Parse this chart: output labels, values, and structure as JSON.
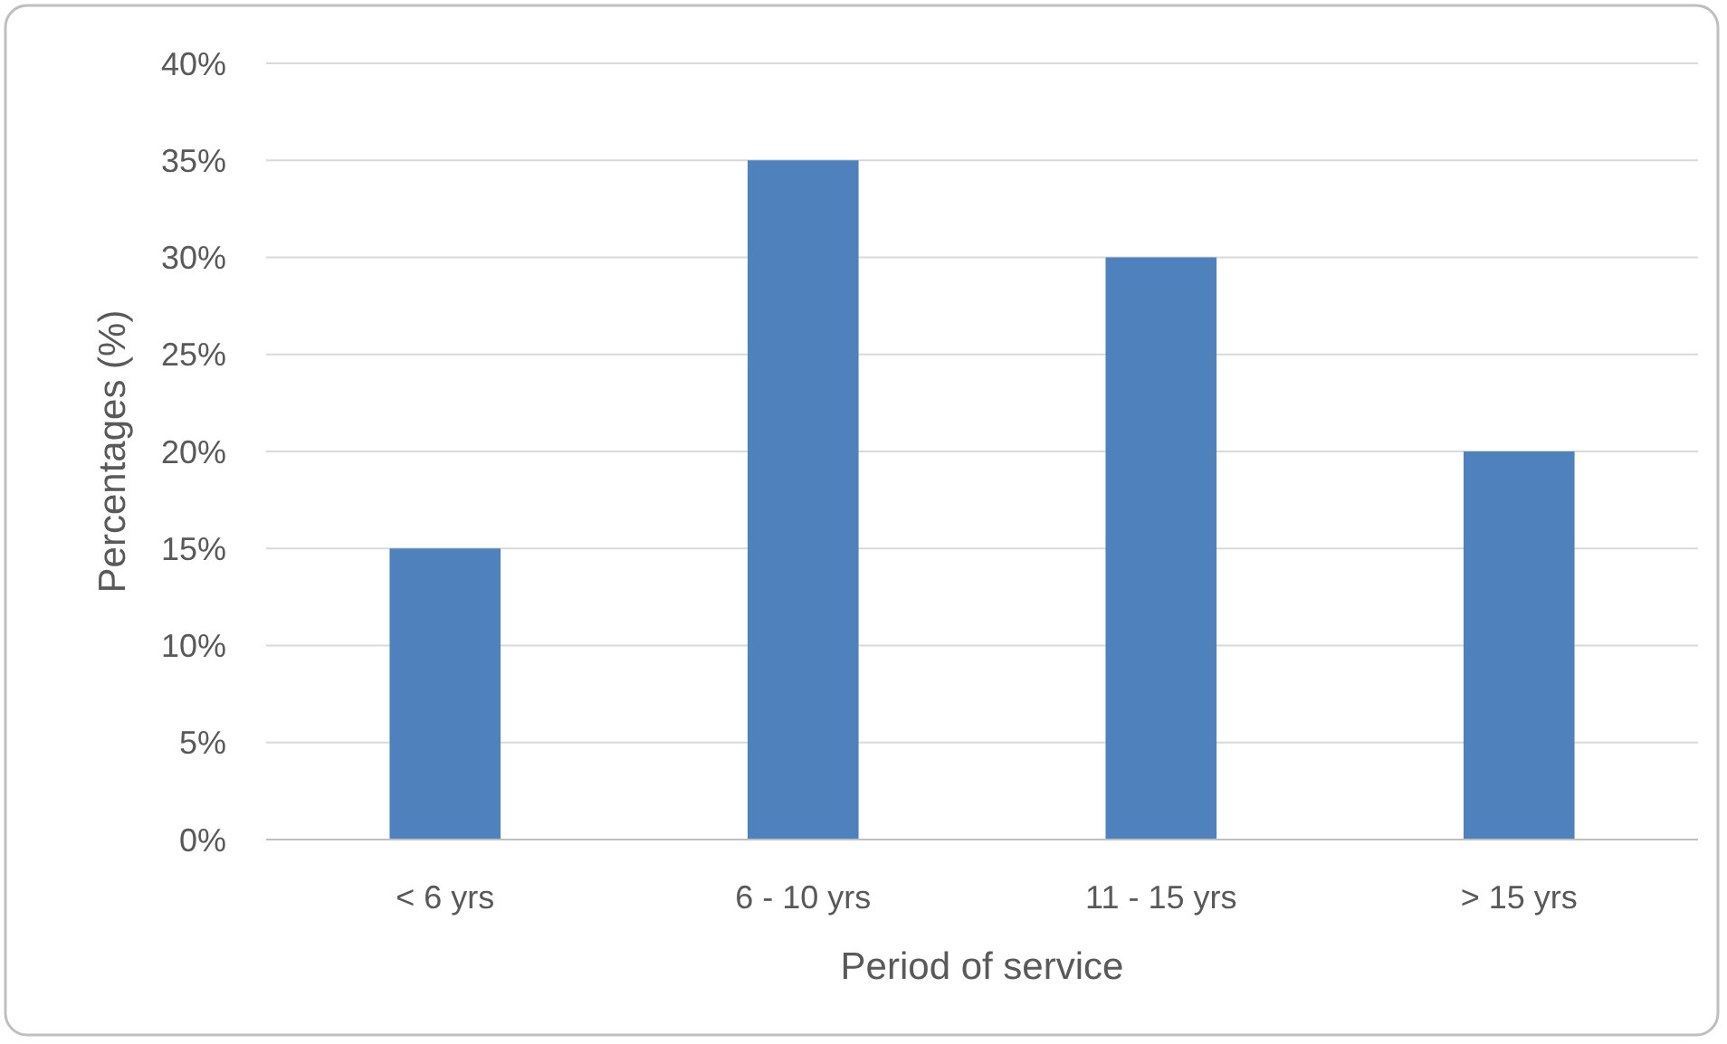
{
  "chart_data": {
    "type": "bar",
    "xlabel": "Period of service",
    "ylabel": "Percentages (%)",
    "categories": [
      "< 6 yrs",
      "6 - 10 yrs",
      "11 - 15 yrs",
      "> 15 yrs"
    ],
    "values": [
      15,
      35,
      30,
      20
    ],
    "color": "#4f81bd",
    "ylim": [
      0,
      40
    ],
    "yticks": [
      {
        "value": 0,
        "label": "0%"
      },
      {
        "value": 5,
        "label": "5%"
      },
      {
        "value": 10,
        "label": "10%"
      },
      {
        "value": 15,
        "label": "15%"
      },
      {
        "value": 20,
        "label": "20%"
      },
      {
        "value": 25,
        "label": "25%"
      },
      {
        "value": 30,
        "label": "30%"
      },
      {
        "value": 35,
        "label": "35%"
      },
      {
        "value": 40,
        "label": "40%"
      }
    ],
    "grid": "y"
  }
}
